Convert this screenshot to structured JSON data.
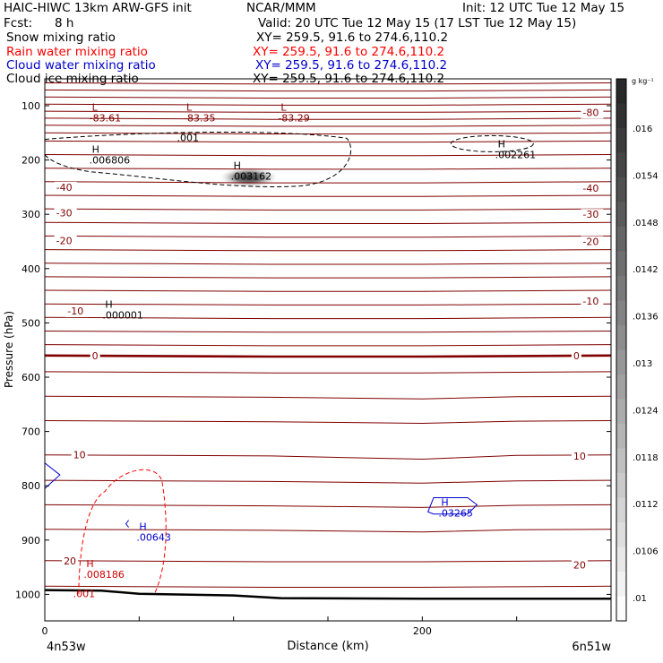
{
  "header": {
    "title": "HAIC-HIWC 13km ARW-GFS init",
    "org": "NCAR/MMM",
    "init": "Init: 12 UTC Tue 12 May 15",
    "fcst_label": "Fcst:",
    "fcst_value": "8 h",
    "valid": "Valid: 20 UTC Tue 12 May 15 (17 LST Tue 12 May 15)",
    "fields": [
      {
        "name": "Snow mixing ratio",
        "xy": "XY= 259.5, 91.6 to 274.6,110.2",
        "color": "#000000"
      },
      {
        "name": "Rain water mixing ratio",
        "xy": "XY= 259.5, 91.6 to 274.6,110.2",
        "color": "#ff0000"
      },
      {
        "name": "Cloud water mixing ratio",
        "xy": "XY= 259.5, 91.6 to 274.6,110.2",
        "color": "#0000cc"
      },
      {
        "name": "Cloud ice mixing ratio",
        "xy": "XY= 259.5, 91.6 to 274.6,110.2",
        "color": "#000000"
      }
    ]
  },
  "chart_data": {
    "type": "contour",
    "xlabel": "Distance (km)",
    "ylabel": "Pressure (hPa)",
    "xlim": [
      0,
      300
    ],
    "ylim": [
      1050,
      50
    ],
    "x_ticks": [
      {
        "value": 0,
        "label": "0"
      },
      {
        "value": 200,
        "label": "200"
      }
    ],
    "y_ticks": [
      100,
      200,
      300,
      400,
      500,
      600,
      700,
      800,
      900,
      1000
    ],
    "left_endpoint": "4n53w",
    "right_endpoint": "6n51w",
    "colorbar": {
      "unit": "g kg⁻¹",
      "labels": [
        ".016",
        ".0154",
        ".0148",
        ".0142",
        ".0136",
        ".013",
        ".0124",
        ".0118",
        ".0112",
        ".0106",
        ".01"
      ]
    },
    "temperature_labels": [
      {
        "text": "-80",
        "x": 285,
        "p": 112
      },
      {
        "text": "-40",
        "x": 6,
        "p": 250
      },
      {
        "text": "-40",
        "x": 285,
        "p": 252
      },
      {
        "text": "-30",
        "x": 6,
        "p": 297
      },
      {
        "text": "-30",
        "x": 285,
        "p": 300
      },
      {
        "text": "-20",
        "x": 6,
        "p": 348
      },
      {
        "text": "-20",
        "x": 285,
        "p": 350
      },
      {
        "text": "-10",
        "x": 285,
        "p": 460
      },
      {
        "text": "-10",
        "x": 12,
        "p": 478
      },
      {
        "text": "0",
        "x": 25,
        "p": 560
      },
      {
        "text": "0",
        "x": 280,
        "p": 560
      },
      {
        "text": "10",
        "x": 15,
        "p": 743
      },
      {
        "text": "10",
        "x": 280,
        "p": 745
      },
      {
        "text": "20",
        "x": 10,
        "p": 938
      },
      {
        "text": "20",
        "x": 280,
        "p": 946
      }
    ],
    "extrema": [
      {
        "kind": "L",
        "value": "-83.61",
        "x": 25,
        "p": 112,
        "color": "#800000"
      },
      {
        "kind": "L",
        "value": "-83.35",
        "x": 75,
        "p": 112,
        "color": "#800000"
      },
      {
        "kind": "L",
        "value": "-83.29",
        "x": 125,
        "p": 112,
        "color": "#800000"
      },
      {
        "kind": "H",
        "value": ".006806",
        "x": 25,
        "p": 190,
        "color": "#000000"
      },
      {
        "kind": "H",
        "value": ".003162",
        "x": 100,
        "p": 220,
        "color": "#000000"
      },
      {
        "kind": "H",
        "value": ".002261",
        "x": 240,
        "p": 180,
        "color": "#000000"
      },
      {
        "kind": "H",
        "value": ".000001",
        "x": 32,
        "p": 475,
        "color": "#000000"
      },
      {
        "kind": "H",
        "value": ".03265",
        "x": 210,
        "p": 840,
        "color": "#0000cc"
      },
      {
        "kind": "H",
        "value": ".00643",
        "x": 50,
        "p": 885,
        "color": "#0000cc"
      },
      {
        "kind": "H",
        "value": ".008186",
        "x": 22,
        "p": 953,
        "color": "#cc0000"
      }
    ],
    "contour_labels": [
      {
        "text": ".001",
        "x": 70,
        "p": 165,
        "color": "#000000"
      },
      {
        "text": ".001",
        "x": 15,
        "p": 1005,
        "color": "#cc0000"
      }
    ]
  }
}
